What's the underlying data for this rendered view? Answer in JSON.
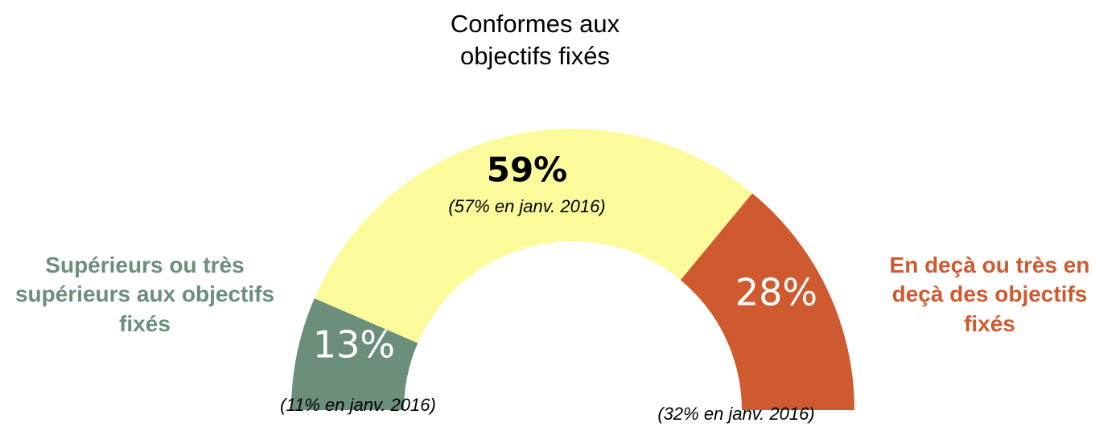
{
  "chart_data": {
    "type": "half-donut",
    "categories": [
      "Supérieurs ou très supérieurs aux objectifs fixés",
      "Conformes aux objectifs fixés",
      "En deçà ou très en deçà des objectifs fixés"
    ],
    "values": [
      13,
      59,
      28
    ],
    "value_labels": [
      "13%",
      "59%",
      "28%"
    ],
    "colors": [
      "#6b8f7b",
      "#fbfb9c",
      "#d05a30"
    ],
    "value_label_colors": [
      "#ffffff",
      "#000000",
      "#ffffff"
    ],
    "category_colors": [
      "#6b8f7b",
      "#000000",
      "#d05a30"
    ],
    "annotations": [
      "(11% en janv. 2016)",
      "(57% en janv. 2016)",
      "(32% en janv. 2016)"
    ]
  }
}
